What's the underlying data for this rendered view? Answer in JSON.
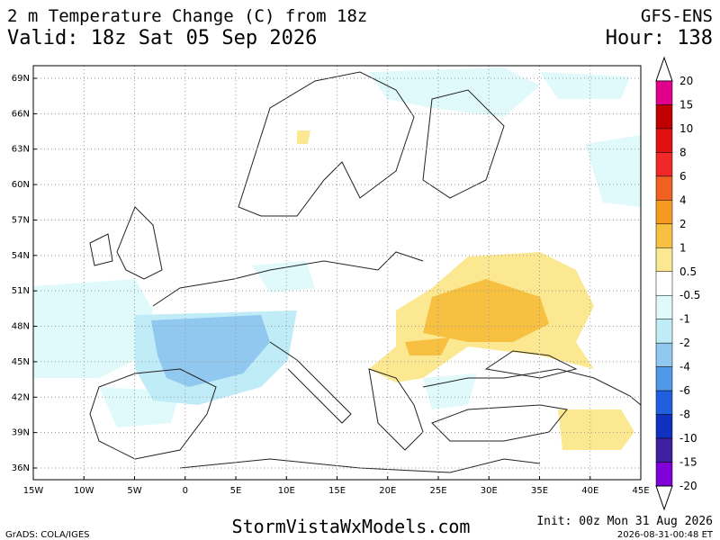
{
  "header": {
    "title": "2 m Temperature Change (C) from 18z",
    "valid": "Valid: 18z Sat 05 Sep 2026",
    "model": "GFS-ENS",
    "hour": "Hour: 138"
  },
  "map": {
    "lat_labels": [
      "69N",
      "66N",
      "63N",
      "60N",
      "57N",
      "54N",
      "51N",
      "48N",
      "45N",
      "42N",
      "39N",
      "36N"
    ],
    "lon_labels": [
      "15W",
      "10W",
      "5W",
      "0",
      "5E",
      "10E",
      "15E",
      "20E",
      "25E",
      "30E",
      "35E",
      "40E",
      "45E"
    ]
  },
  "colorbar": {
    "labels": [
      "20",
      "15",
      "10",
      "8",
      "6",
      "4",
      "2",
      "1",
      "0.5",
      "-0.5",
      "-1",
      "-2",
      "-4",
      "-6",
      "-8",
      "-10",
      "-15",
      "-20"
    ],
    "colors": [
      "#e0008c",
      "#c00000",
      "#e01010",
      "#f02828",
      "#f06020",
      "#f59a20",
      "#f8c040",
      "#fce890",
      "#ffffff",
      "#e0fafc",
      "#c0ecf8",
      "#90c8f0",
      "#5098e8",
      "#2060e0",
      "#1030c0",
      "#4020a0",
      "#8000d8"
    ]
  },
  "footer": {
    "credit": "GrADS: COLA/IGES",
    "site": "StormVistaWxModels.com",
    "init": "Init: 00z Mon 31 Aug 2026",
    "stamp": "2026-08-31-00:48 ET"
  }
}
